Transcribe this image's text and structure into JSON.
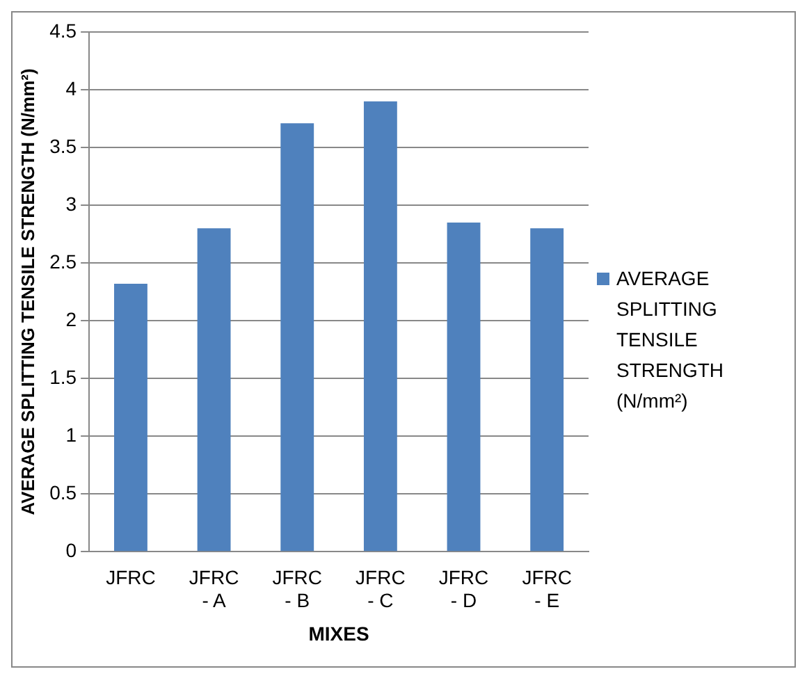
{
  "chart_data": {
    "type": "bar",
    "xlabel": "MIXES",
    "ylabel": "AVERAGE SPLITTING TENSILE STRENGTH (N/mm²)",
    "categories": [
      "JFRC",
      "JFRC - A",
      "JFRC - B",
      "JFRC - C",
      "JFRC - D",
      "JFRC - E"
    ],
    "series": [
      {
        "name": "AVERAGE SPLITTING TENSILE STRENGTH (N/mm²)",
        "color": "#4f81bd",
        "values": [
          2.32,
          2.8,
          3.71,
          3.9,
          2.85,
          2.8
        ]
      }
    ],
    "ylim": [
      0,
      4.5
    ],
    "yticks": [
      0,
      0.5,
      1,
      1.5,
      2,
      2.5,
      3,
      3.5,
      4,
      4.5
    ],
    "grid": "y",
    "legend": "right"
  }
}
